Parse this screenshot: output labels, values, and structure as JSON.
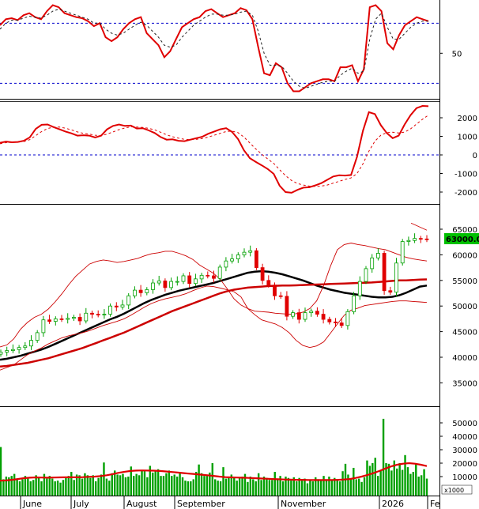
{
  "chart_data": [
    {
      "type": "line",
      "panel": "rsi",
      "ylim": [
        0,
        100
      ],
      "y_ticks": [
        50
      ],
      "reference_lines": [
        80,
        20
      ],
      "series": [
        {
          "color": "#e00000",
          "values": [
            78,
            84,
            85,
            83,
            88,
            90,
            86,
            84,
            92,
            98,
            96,
            90,
            88,
            86,
            85,
            82,
            77,
            80,
            66,
            62,
            66,
            74,
            80,
            84,
            86,
            70,
            64,
            58,
            46,
            52,
            64,
            76,
            80,
            84,
            86,
            92,
            94,
            90,
            86,
            88,
            90,
            95,
            93,
            84,
            56,
            30,
            28,
            40,
            36,
            20,
            12,
            12,
            16,
            20,
            22,
            24,
            24,
            22,
            36,
            36,
            38,
            22,
            34,
            96,
            98,
            92,
            60,
            54,
            68,
            78,
            82,
            86,
            84,
            82
          ]
        },
        {
          "color": "#222222",
          "dash": true,
          "values": [
            74,
            80,
            83,
            83,
            85,
            87,
            86,
            85,
            88,
            92,
            94,
            92,
            90,
            88,
            86,
            84,
            80,
            80,
            74,
            70,
            68,
            70,
            74,
            78,
            81,
            78,
            72,
            66,
            58,
            56,
            58,
            66,
            72,
            78,
            82,
            86,
            89,
            89,
            88,
            88,
            89,
            91,
            92,
            88,
            72,
            50,
            38,
            38,
            37,
            30,
            22,
            17,
            15,
            17,
            19,
            21,
            22,
            22,
            28,
            32,
            35,
            30,
            32,
            64,
            84,
            90,
            76,
            64,
            64,
            70,
            76,
            80,
            82,
            82
          ]
        }
      ]
    },
    {
      "type": "line",
      "panel": "macd",
      "y_ticks": [
        2000,
        1000,
        0,
        -1000,
        -2000
      ],
      "reference_lines": [
        0
      ],
      "series": [
        {
          "color": "#e00000",
          "values": [
            650,
            720,
            680,
            700,
            760,
            940,
            1400,
            1620,
            1640,
            1500,
            1380,
            1260,
            1160,
            1040,
            1060,
            1040,
            940,
            1040,
            1380,
            1560,
            1640,
            1560,
            1580,
            1420,
            1440,
            1320,
            1180,
            960,
            820,
            840,
            760,
            740,
            820,
            900,
            980,
            1140,
            1260,
            1380,
            1440,
            1240,
            860,
            250,
            -180,
            -380,
            -560,
            -760,
            -1020,
            -1660,
            -2000,
            -2040,
            -1880,
            -1760,
            -1740,
            -1640,
            -1520,
            -1340,
            -1160,
            -1100,
            -1110,
            -1080,
            -100,
            1300,
            2300,
            2200,
            1600,
            1180,
            900,
            1040,
            1640,
            2140,
            2520,
            2640,
            2620
          ]
        },
        {
          "color": "#e00000",
          "dash": true,
          "values": [
            600,
            660,
            680,
            690,
            720,
            820,
            1040,
            1260,
            1420,
            1500,
            1500,
            1440,
            1350,
            1240,
            1160,
            1120,
            1060,
            1040,
            1120,
            1240,
            1360,
            1450,
            1510,
            1500,
            1480,
            1430,
            1350,
            1220,
            1080,
            980,
            900,
            840,
            820,
            840,
            880,
            960,
            1060,
            1160,
            1260,
            1280,
            1200,
            960,
            640,
            320,
            40,
            -220,
            -460,
            -800,
            -1120,
            -1380,
            -1540,
            -1620,
            -1680,
            -1700,
            -1680,
            -1620,
            -1520,
            -1420,
            -1320,
            -1240,
            -1000,
            -480,
            200,
            740,
            1060,
            1200,
            1220,
            1180,
            1230,
            1400,
            1660,
            1920,
            2140
          ]
        }
      ]
    },
    {
      "type": "line",
      "panel": "price",
      "y_ticks": [
        65000,
        60000,
        55000,
        50000,
        45000,
        40000,
        35000
      ],
      "current_price_label": "63000.00",
      "current_price": 63000,
      "series": [
        {
          "color": "#000000",
          "values": [
            39500,
            39700,
            40000,
            40300,
            40700,
            41100,
            41500,
            42000,
            42600,
            43200,
            43800,
            44400,
            45000,
            45600,
            46200,
            46800,
            47400,
            47900,
            48500,
            49200,
            49900,
            50600,
            51200,
            51700,
            52200,
            52600,
            53000,
            53300,
            53600,
            53900,
            54200,
            54500,
            54900,
            55300,
            55700,
            56100,
            56500,
            56700,
            56800,
            56700,
            56500,
            56200,
            55800,
            55400,
            55000,
            54500,
            54000,
            53600,
            53200,
            52900,
            52600,
            52400,
            52200,
            52000,
            51800,
            51700,
            51700,
            51800,
            52100,
            52600,
            53200,
            53800,
            54000
          ]
        },
        {
          "color": "#cc0000",
          "values": [
            38200,
            38300,
            38500,
            38700,
            38900,
            39200,
            39500,
            39800,
            40200,
            40600,
            41000,
            41400,
            41800,
            42300,
            42800,
            43300,
            43800,
            44300,
            44800,
            45400,
            46000,
            46600,
            47200,
            47800,
            48400,
            49000,
            49500,
            50000,
            50500,
            51000,
            51500,
            52000,
            52500,
            52900,
            53200,
            53400,
            53600,
            53700,
            53800,
            53900,
            53950,
            54000,
            54000,
            54050,
            54100,
            54150,
            54200,
            54250,
            54300,
            54350,
            54400,
            54450,
            54500,
            54550,
            54600,
            54700,
            54800,
            54900,
            55000,
            55000,
            55100,
            55150,
            55200
          ]
        },
        {
          "color": "#cc0000",
          "width": 0.8,
          "values": [
            42000,
            42400,
            43600,
            45500,
            46800,
            47800,
            48400,
            49400,
            50800,
            52400,
            54200,
            55800,
            57000,
            58200,
            58700,
            59000,
            58800,
            58500,
            58700,
            59000,
            59300,
            59800,
            60200,
            60400,
            60700,
            60700,
            60300,
            59800,
            59100,
            58000,
            57200,
            56400,
            55200,
            53400,
            51400,
            50200,
            49500,
            49000,
            48900,
            48800,
            48600,
            48500,
            48400,
            48500,
            48800,
            49500,
            51000,
            54000,
            57800,
            61000,
            62000,
            62300,
            62000,
            61800,
            61500,
            61200,
            61000,
            60500,
            60000,
            59500,
            59200,
            59000,
            58800
          ]
        },
        {
          "color": "#cc0000",
          "width": 0.8,
          "values": [
            37500,
            38000,
            38500,
            39500,
            40500,
            41200,
            41800,
            42600,
            43200,
            43800,
            44200,
            44500,
            44800,
            45200,
            45700,
            46200,
            46600,
            47000,
            47500,
            48200,
            49000,
            49800,
            50500,
            51000,
            51400,
            51700,
            52000,
            52400,
            53000,
            53500,
            53900,
            53800,
            53500,
            53200,
            52800,
            51800,
            49500,
            48300,
            47300,
            46900,
            46500,
            45800,
            44800,
            43300,
            42300,
            41900,
            42200,
            43000,
            44700,
            46500,
            48200,
            49200,
            49600,
            50100,
            50300,
            50500,
            50700,
            50900,
            51000,
            51000,
            50900,
            50800,
            50700
          ]
        }
      ],
      "candles": {
        "close": [
          41000,
          41300,
          41500,
          41900,
          42200,
          43300,
          44800,
          47300,
          47000,
          47500,
          47400,
          47600,
          47800,
          47100,
          48600,
          48400,
          48300,
          48400,
          50000,
          49800,
          50200,
          52000,
          53100,
          52600,
          53200,
          54500,
          54900,
          53600,
          54800,
          54800,
          55900,
          54400,
          55300,
          56000,
          55900,
          55400,
          57600,
          58800,
          59200,
          60000,
          60500,
          60800,
          57500,
          55000,
          54100,
          52000,
          51900,
          48000,
          48700,
          47400,
          48700,
          49000,
          48400,
          47400,
          46900,
          46700,
          46200,
          48900,
          52000,
          54800,
          57300,
          59400,
          60300,
          53000,
          52700,
          58400,
          62600,
          62800,
          63200,
          63100,
          63000
        ]
      },
      "bollinger_period_label": "",
      "xlabel": "",
      "ylabel": ""
    },
    {
      "type": "bar",
      "panel": "volume",
      "y_ticks": [
        50000,
        40000,
        30000,
        20000,
        10000
      ],
      "unit_label": "x1000",
      "values": [
        32000,
        8000,
        10000,
        9500,
        10500,
        12000,
        8500,
        6500,
        8000,
        10500,
        8500,
        6500,
        7500,
        11000,
        9000,
        6500,
        12000,
        8500,
        10500,
        8500,
        6500,
        7000,
        5500,
        7500,
        9000,
        10500,
        13500,
        7500,
        11500,
        11000,
        8500,
        12500,
        11000,
        9000,
        11000,
        6500,
        9000,
        11500,
        20500,
        8500,
        7000,
        12500,
        14500,
        11500,
        11000,
        12000,
        9500,
        10000,
        17500,
        10500,
        12000,
        11000,
        14500,
        14000,
        9500,
        18000,
        13000,
        14500,
        15500,
        10500,
        10500,
        12500,
        14500,
        10500,
        11500,
        10000,
        12500,
        9500,
        7000,
        6500,
        6500,
        8000,
        13500,
        19000,
        12500,
        10500,
        10500,
        13000,
        20000,
        8000,
        7000,
        6500,
        17000,
        8500,
        9500,
        11500,
        9500,
        7000,
        9000,
        10000,
        12000,
        6000,
        10000,
        8000,
        6500,
        12500,
        7500,
        10000,
        9000,
        7500,
        7500,
        13500,
        8000,
        10500,
        6500,
        10000,
        9000,
        7000,
        9500,
        6500,
        9000,
        7000,
        8500,
        5000,
        7500,
        6500,
        9500,
        8000,
        7500,
        10500,
        8000,
        10000,
        7000,
        9000,
        8000,
        6500,
        14000,
        19500,
        11500,
        8500,
        16500,
        8000,
        8500,
        6000,
        9500,
        22000,
        18000,
        20000,
        24000,
        10500,
        14500,
        53000,
        20000,
        19500,
        14500,
        22000,
        16000,
        20000,
        15000,
        26000,
        17000,
        12000,
        13500,
        19500,
        10000,
        11000,
        15500,
        8500
      ],
      "ma_values": [
        7000,
        7200,
        7600,
        8200,
        8800,
        9200,
        9400,
        9300,
        9200,
        9300,
        9400,
        9500,
        9500,
        9500,
        9600,
        9800,
        10000,
        10400,
        11000,
        11800,
        12800,
        13600,
        14200,
        14500,
        14600,
        14500,
        14400,
        14200,
        13800,
        13400,
        13000,
        12600,
        12200,
        11800,
        11400,
        11000,
        10500,
        10000,
        9600,
        9400,
        9300,
        9200,
        9000,
        8800,
        8600,
        8400,
        8200,
        8000,
        7800,
        7700,
        7600,
        7600,
        7500,
        7400,
        7400,
        7400,
        7500,
        7600,
        7800,
        8200,
        9000,
        10000,
        11200,
        12600,
        14200,
        16000,
        17600,
        18800,
        19600,
        20000,
        19600,
        18800,
        17800
      ]
    }
  ],
  "x_axis": {
    "months": [
      "June",
      "July",
      "August",
      "September",
      "November",
      "2026",
      "Fe"
    ]
  },
  "colors": {
    "up_candle": "#00a000",
    "down_candle": "#e00000",
    "volume_bar": "#00a000",
    "grid_dash": "#0000cc",
    "price_label_bg": "#00c000"
  }
}
